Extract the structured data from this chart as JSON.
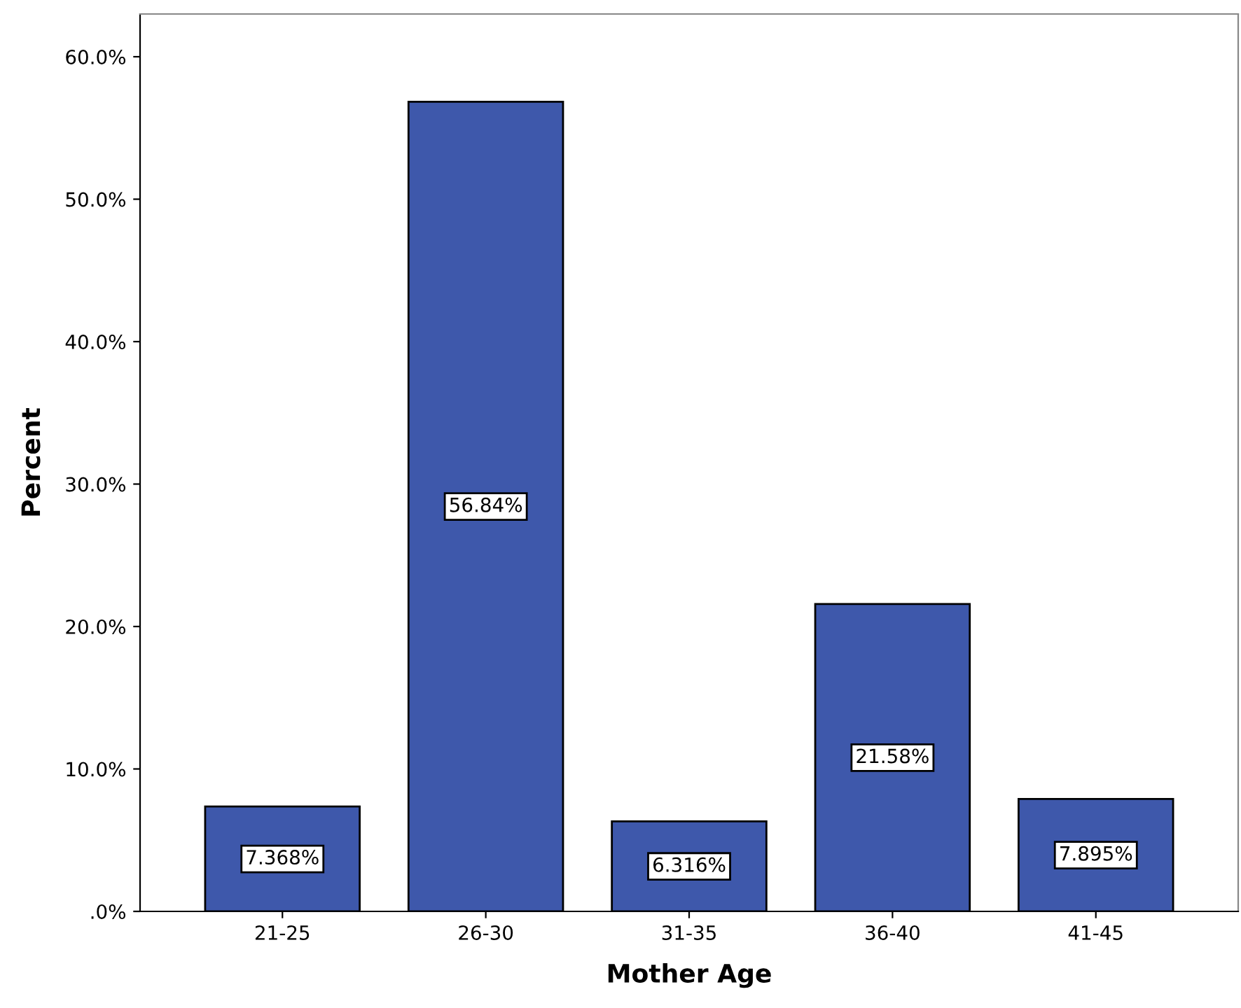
{
  "chart_data": {
    "type": "bar",
    "xlabel": "Mother Age",
    "ylabel": "Percent",
    "categories": [
      "21-25",
      "26-30",
      "31-35",
      "36-40",
      "41-45"
    ],
    "values": [
      7.368,
      56.84,
      6.316,
      21.58,
      7.895
    ],
    "value_labels": [
      "7.368%",
      "56.84%",
      "6.316%",
      "21.58%",
      "7.895%"
    ],
    "color": "#3e58ab",
    "ylim": [
      0,
      63
    ],
    "yticks": [
      {
        "value": 0,
        "label": ".0%"
      },
      {
        "value": 10,
        "label": "10.0%"
      },
      {
        "value": 20,
        "label": "20.0%"
      },
      {
        "value": 30,
        "label": "30.0%"
      },
      {
        "value": 40,
        "label": "40.0%"
      },
      {
        "value": 50,
        "label": "50.0%"
      },
      {
        "value": 60,
        "label": "60.0%"
      }
    ],
    "grid": false
  }
}
